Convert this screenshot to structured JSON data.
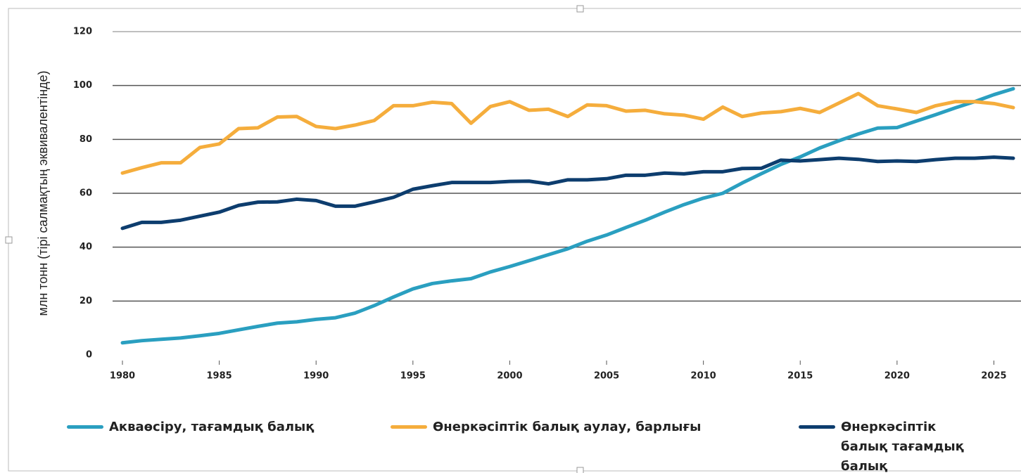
{
  "chart_data": {
    "type": "line",
    "y_label": "млн тонн (тірі салмақтың эквивалентінде)",
    "x": [
      1980,
      1981,
      1982,
      1983,
      1984,
      1985,
      1986,
      1987,
      1988,
      1989,
      1990,
      1991,
      1992,
      1993,
      1994,
      1995,
      1996,
      1997,
      1998,
      1999,
      2000,
      2001,
      2002,
      2003,
      2004,
      2005,
      2006,
      2007,
      2008,
      2009,
      2010,
      2011,
      2012,
      2013,
      2014,
      2015,
      2016,
      2017,
      2018,
      2019,
      2020,
      2021,
      2022,
      2023,
      2024,
      2025,
      2026
    ],
    "series": [
      {
        "name": "Акваөсіру, тағамдық балық",
        "color": "#2a9fc0",
        "values": [
          4.5,
          5.3,
          5.8,
          6.3,
          7.1,
          8,
          9.3,
          10.6,
          11.8,
          12.3,
          13.2,
          13.8,
          15.5,
          18.3,
          21.5,
          24.5,
          26.5,
          27.5,
          28.3,
          30.8,
          32.8,
          35,
          37.2,
          39.4,
          42.2,
          44.5,
          47.3,
          50,
          53,
          55.8,
          58.2,
          60,
          63.8,
          67.3,
          70.7,
          73.5,
          76.8,
          79.5,
          82,
          84.2,
          84.4,
          86.8,
          89.2,
          91.7,
          94,
          96.6,
          98.8
        ]
      },
      {
        "name": "Өнеркәсіптік балық аулау, барлығы",
        "color": "#f5ad3c",
        "values": [
          67.5,
          69.5,
          71.3,
          71.3,
          77,
          78.3,
          84,
          84.3,
          88.3,
          88.5,
          84.8,
          84,
          85.3,
          87,
          92.5,
          92.5,
          93.8,
          93.3,
          86,
          92.2,
          94,
          90.8,
          91.2,
          88.5,
          92.8,
          92.5,
          90.5,
          90.8,
          89.5,
          89,
          87.5,
          92,
          88.5,
          89.8,
          90.3,
          91.5,
          90,
          93.5,
          97,
          92.5,
          91.3,
          90,
          92.5,
          94,
          94,
          93.3,
          91.8
        ]
      },
      {
        "name": "Өнеркәсіптік балық тағамдық балық",
        "color": "#0d3d6e",
        "values": [
          47,
          49.2,
          49.2,
          50,
          51.5,
          53,
          55.5,
          56.7,
          56.8,
          57.8,
          57.3,
          55.2,
          55.2,
          56.8,
          58.5,
          61.5,
          62.8,
          64,
          64,
          64,
          64.4,
          64.5,
          63.5,
          65,
          65,
          65.4,
          66.7,
          66.7,
          67.5,
          67.2,
          68,
          68,
          69.2,
          69.3,
          72.3,
          72,
          72.5,
          73,
          72.6,
          71.8,
          72,
          71.8,
          72.5,
          73,
          73,
          73.4,
          73
        ]
      }
    ],
    "xlim": [
      1980,
      2026.4
    ],
    "xticks": [
      1980,
      1985,
      1990,
      1995,
      2000,
      2005,
      2010,
      2015,
      2020,
      2025
    ],
    "ylim": [
      0,
      120
    ],
    "yticks": [
      0,
      20,
      40,
      60,
      80,
      100,
      120
    ],
    "grid": true
  }
}
